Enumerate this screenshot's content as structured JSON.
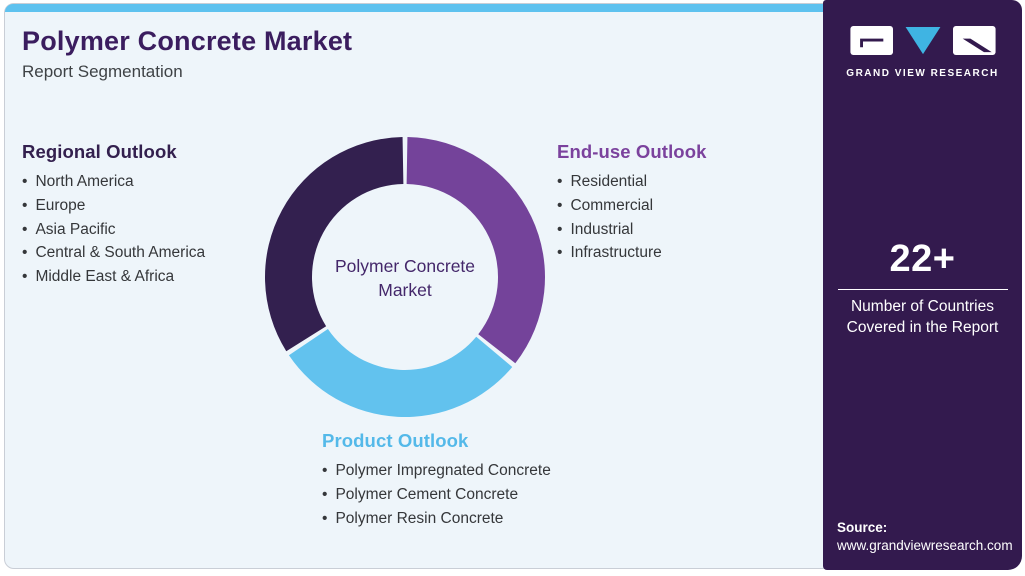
{
  "page": {
    "background": "#ffffff",
    "card_background": "#eef5fa",
    "top_bar_color": "#5ec2ef",
    "border_color": "#c9ced6"
  },
  "header": {
    "title": "Polymer Concrete Market",
    "subtitle": "Report Segmentation",
    "title_color": "#3b1d5f"
  },
  "sidebar": {
    "background": "#331a4e",
    "logo": {
      "text": "GRAND VIEW RESEARCH",
      "triangle_color": "#3fb4e3"
    },
    "stat": {
      "value": "22+",
      "label_line1": "Number of Countries",
      "label_line2": "Covered in the Report"
    },
    "source": {
      "label": "Source:",
      "url": "www.grandviewresearch.com"
    }
  },
  "sections": {
    "regional": {
      "title": "Regional Outlook",
      "color": "#33204e",
      "items": [
        "North America",
        "Europe",
        "Asia Pacific",
        "Central & South America",
        "Middle East & Africa"
      ]
    },
    "end_use": {
      "title": "End-use Outlook",
      "color": "#7b429d",
      "items": [
        "Residential",
        "Commercial",
        "Industrial",
        "Infrastructure"
      ]
    },
    "product": {
      "title": "Product Outlook",
      "color": "#54b9e9",
      "items": [
        "Polymer Impregnated Concrete",
        "Polymer Cement Concrete",
        "Polymer Resin Concrete"
      ]
    }
  },
  "chart_data": {
    "type": "pie",
    "subtype": "donut",
    "center_label": [
      "Polymer Concrete",
      "Market"
    ],
    "center_label_color": "#44276a",
    "outer_radius_px": 140,
    "inner_radius_px": 93,
    "gap_deg": 2,
    "legend_position": "none",
    "segments": [
      {
        "name": "End-use Outlook",
        "color": "#74439a",
        "start_deg": 0,
        "end_deg": 129,
        "share_pct": 35.8
      },
      {
        "name": "Product Outlook",
        "color": "#62c2ee",
        "start_deg": 129,
        "end_deg": 237,
        "share_pct": 30.0
      },
      {
        "name": "Regional Outlook",
        "color": "#33204f",
        "start_deg": 237,
        "end_deg": 360,
        "share_pct": 34.2
      }
    ]
  }
}
